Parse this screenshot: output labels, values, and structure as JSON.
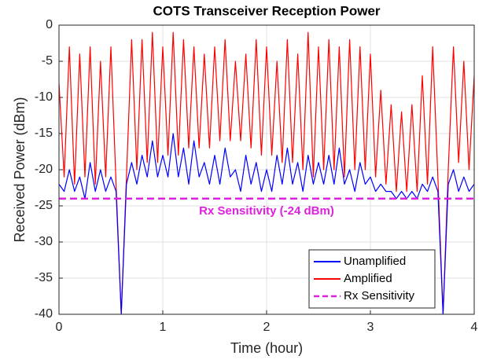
{
  "chart_data": {
    "type": "line",
    "title": "COTS Transceiver Reception Power",
    "x_label": "Time (hour)",
    "y_label": "Received Power (dBm)",
    "x": [
      0,
      0.05,
      0.1,
      0.15,
      0.2,
      0.25,
      0.3,
      0.35,
      0.4,
      0.45,
      0.5,
      0.55,
      0.6,
      0.65,
      0.7,
      0.75,
      0.8,
      0.85,
      0.9,
      0.95,
      1,
      1.05,
      1.1,
      1.15,
      1.2,
      1.25,
      1.3,
      1.35,
      1.4,
      1.45,
      1.5,
      1.55,
      1.6,
      1.65,
      1.7,
      1.75,
      1.8,
      1.85,
      1.9,
      1.95,
      2,
      2.05,
      2.1,
      2.15,
      2.2,
      2.25,
      2.3,
      2.35,
      2.4,
      2.45,
      2.5,
      2.55,
      2.6,
      2.65,
      2.7,
      2.75,
      2.8,
      2.85,
      2.9,
      2.95,
      3,
      3.05,
      3.1,
      3.15,
      3.2,
      3.25,
      3.3,
      3.35,
      3.4,
      3.45,
      3.5,
      3.55,
      3.6,
      3.65,
      3.7,
      3.75,
      3.8,
      3.85,
      3.9,
      3.95,
      4
    ],
    "series": [
      {
        "name": "Amplified",
        "color": "#ff0000",
        "values": [
          -8,
          -21,
          -3,
          -22,
          -4,
          -21,
          -3,
          -22,
          -5,
          -21,
          -3,
          -22,
          -40,
          -21,
          -2,
          -20,
          -2,
          -19,
          -1,
          -19,
          -3,
          -18,
          -1,
          -18,
          -2,
          -17,
          -3,
          -17,
          -4,
          -17,
          -3,
          -16,
          -2,
          -16,
          -5,
          -16,
          -4,
          -17,
          -2,
          -18,
          -3,
          -18,
          -5,
          -19,
          -2,
          -19,
          -4,
          -20,
          -1,
          -21,
          -3,
          -20,
          -2,
          -20,
          -3,
          -21,
          -2,
          -20,
          -3,
          -20,
          -4,
          -21,
          -9,
          -22,
          -11,
          -23,
          -12,
          -23,
          -11,
          -23,
          -7,
          -22,
          -3,
          -21,
          -40,
          -20,
          -3,
          -19,
          -5,
          -20,
          -7
        ]
      },
      {
        "name": "Unamplified",
        "color": "#0000ff",
        "values": [
          -22,
          -23,
          -20,
          -23,
          -21,
          -24,
          -19,
          -23,
          -20,
          -23,
          -21,
          -23,
          -40,
          -22,
          -19,
          -22,
          -18,
          -21,
          -16,
          -21,
          -18,
          -21,
          -15,
          -21,
          -17,
          -22,
          -16,
          -21,
          -19,
          -22,
          -18,
          -22,
          -17,
          -21,
          -20,
          -23,
          -18,
          -22,
          -19,
          -23,
          -20,
          -23,
          -18,
          -22,
          -17,
          -22,
          -19,
          -23,
          -18,
          -22,
          -19,
          -22,
          -18,
          -22,
          -17,
          -22,
          -20,
          -23,
          -19,
          -22,
          -21,
          -23,
          -22,
          -23,
          -23,
          -24,
          -23,
          -24,
          -23,
          -24,
          -22,
          -23,
          -21,
          -23,
          -40,
          -22,
          -20,
          -23,
          -21,
          -23,
          -22
        ]
      }
    ],
    "legend_order": [
      1,
      0
    ],
    "threshold": {
      "name": "Rx Sensitivity",
      "value": -24,
      "color": "#e020e0",
      "label": "Rx Sensitivity (-24 dBm)"
    },
    "xlim": [
      0,
      4
    ],
    "xticks": [
      0,
      1,
      2,
      3,
      4
    ],
    "ylim": [
      -40,
      0
    ],
    "yticks": [
      -40,
      -35,
      -30,
      -25,
      -20,
      -15,
      -10,
      -5,
      0
    ],
    "grid": true,
    "legend": "lower right"
  }
}
